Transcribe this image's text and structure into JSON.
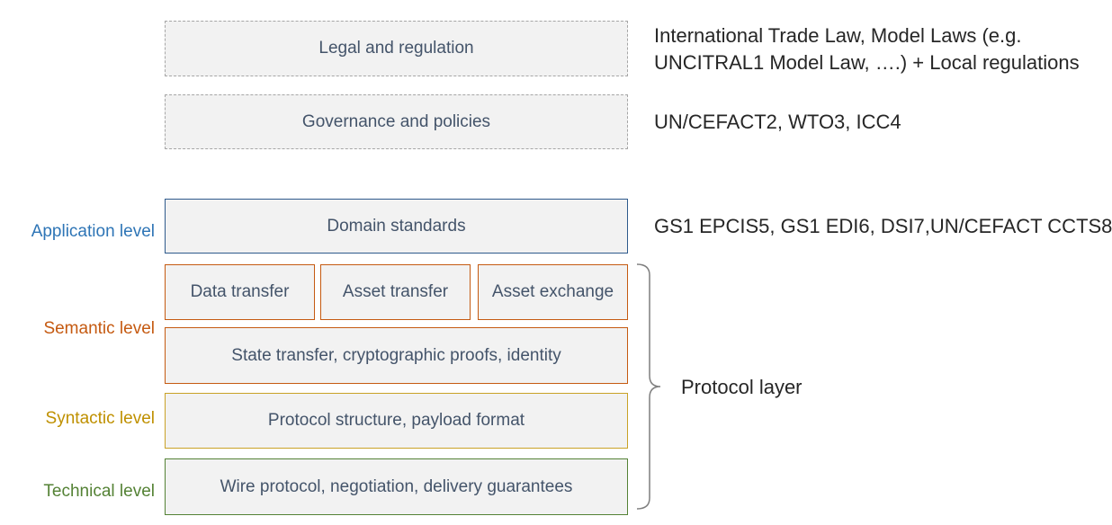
{
  "boxes": {
    "legal": "Legal and regulation",
    "governance": "Governance and policies",
    "domain": "Domain standards",
    "data_transfer": "Data transfer",
    "asset_transfer": "Asset transfer",
    "asset_exchange": "Asset exchange",
    "state_transfer": "State transfer, cryptographic proofs, identity",
    "protocol_structure": "Protocol structure, payload format",
    "wire_protocol": "Wire protocol, negotiation, delivery guarantees"
  },
  "levels": {
    "application": "Application level",
    "semantic": "Semantic level",
    "syntactic": "Syntactic level",
    "technical": "Technical level"
  },
  "notes": {
    "legal_line1": "International Trade Law, Model Laws (e.g.",
    "legal_line2": "UNCITRAL1 Model Law, ….) + Local regulations",
    "governance": "UN/CEFACT2, WTO3, ICC4",
    "domain": "GS1 EPCIS5, GS1 EDI6, DSI7,UN/CEFACT CCTS8",
    "protocol_layer": "Protocol layer"
  },
  "colors": {
    "application": "#2e75b6",
    "semantic": "#c55a11",
    "syntactic": "#bf9000",
    "technical": "#548235",
    "box_fill": "#f2f2f2",
    "box_text": "#44546a"
  }
}
